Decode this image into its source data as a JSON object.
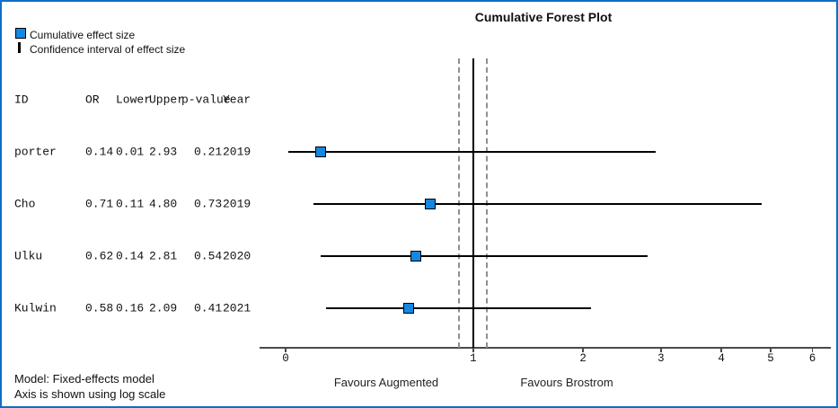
{
  "window": {
    "border_color": "#0d6fc5",
    "background": "#ffffff"
  },
  "title": "Cumulative Forest Plot",
  "legend": {
    "effect_label": "Cumulative effect size",
    "ci_label": "Confidence interval of effect size"
  },
  "table": {
    "headers": [
      "ID",
      "OR",
      "Lower",
      "Upper",
      "p-value",
      "Year"
    ]
  },
  "axis_labels": {
    "left": "Favours Augmented",
    "right": "Favours Brostrom"
  },
  "footnotes": [
    "Model: Fixed-effects model",
    "Axis is shown using log scale"
  ],
  "colors": {
    "marker": "#1487e0",
    "ci_line": "#000000",
    "reference_solid": "#000000",
    "reference_dashed": "#8f8f8f",
    "axis": "#4a4a4a"
  },
  "chart_data": {
    "type": "forest",
    "title": "Cumulative Forest Plot",
    "x_scale": "log (axis is shown using log scale)",
    "x_ticks": [
      0,
      1,
      2,
      3,
      4,
      5,
      6
    ],
    "x_range": [
      0,
      6
    ],
    "reference_line_solid": 1.0,
    "reference_lines_dashed": [
      0.9,
      1.1
    ],
    "legend_position": "top-left",
    "grid": false,
    "studies": [
      {
        "id": "porter",
        "or": 0.14,
        "lower": 0.01,
        "upper": 2.93,
        "p": 0.21,
        "year": 2019
      },
      {
        "id": "Cho",
        "or": 0.71,
        "lower": 0.11,
        "upper": 4.8,
        "p": 0.73,
        "year": 2019
      },
      {
        "id": "Ulku",
        "or": 0.62,
        "lower": 0.14,
        "upper": 2.81,
        "p": 0.54,
        "year": 2020
      },
      {
        "id": "Kulwin",
        "or": 0.58,
        "lower": 0.16,
        "upper": 2.09,
        "p": 0.41,
        "year": 2021
      }
    ]
  }
}
